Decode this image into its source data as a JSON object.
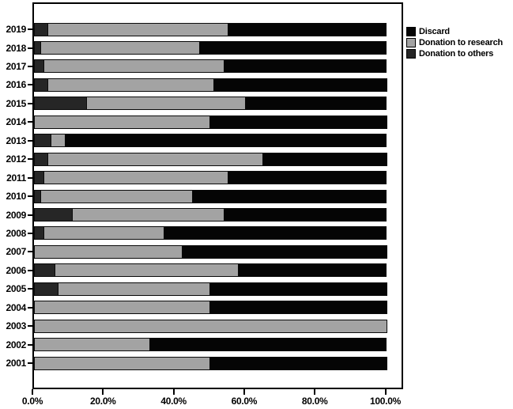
{
  "chart_data": {
    "type": "bar",
    "orientation": "horizontal",
    "stacked": true,
    "title": "",
    "xlabel": "",
    "ylabel": "",
    "xlim": [
      0,
      100
    ],
    "grid": false,
    "legend_position": "outside-top-right",
    "categories": [
      "2019",
      "2018",
      "2017",
      "2016",
      "2015",
      "2014",
      "2013",
      "2012",
      "2011",
      "2010",
      "2009",
      "2008",
      "2007",
      "2006",
      "2005",
      "2004",
      "2003",
      "2002",
      "2001"
    ],
    "series": [
      {
        "name": "Donation to others",
        "color": "#262626",
        "values": [
          4,
          2,
          3,
          4,
          15,
          0,
          5,
          4,
          3,
          2,
          11,
          3,
          0,
          6,
          7,
          0,
          0,
          0,
          0
        ]
      },
      {
        "name": "Donation to research",
        "color": "#a3a3a3",
        "values": [
          51,
          45,
          51,
          47,
          45,
          50,
          4,
          61,
          52,
          43,
          43,
          34,
          42,
          52,
          43,
          50,
          100,
          33,
          50
        ]
      },
      {
        "name": "Discard",
        "color": "#050505",
        "values": [
          45,
          53,
          46,
          49,
          40,
          50,
          91,
          35,
          45,
          55,
          46,
          63,
          58,
          42,
          50,
          50,
          0,
          67,
          50
        ]
      }
    ],
    "x_ticks": [
      {
        "value": 0,
        "label": "0.0%"
      },
      {
        "value": 20,
        "label": "20.0%"
      },
      {
        "value": 40,
        "label": "40.0%"
      },
      {
        "value": 60,
        "label": "60.0%"
      },
      {
        "value": 80,
        "label": "80.0%"
      },
      {
        "value": 100,
        "label": "100.0%"
      }
    ],
    "legend": [
      {
        "label": "Discard",
        "color": "#050505"
      },
      {
        "label": "Donation to research",
        "color": "#a3a3a3"
      },
      {
        "label": "Donation to others",
        "color": "#262626"
      }
    ]
  }
}
